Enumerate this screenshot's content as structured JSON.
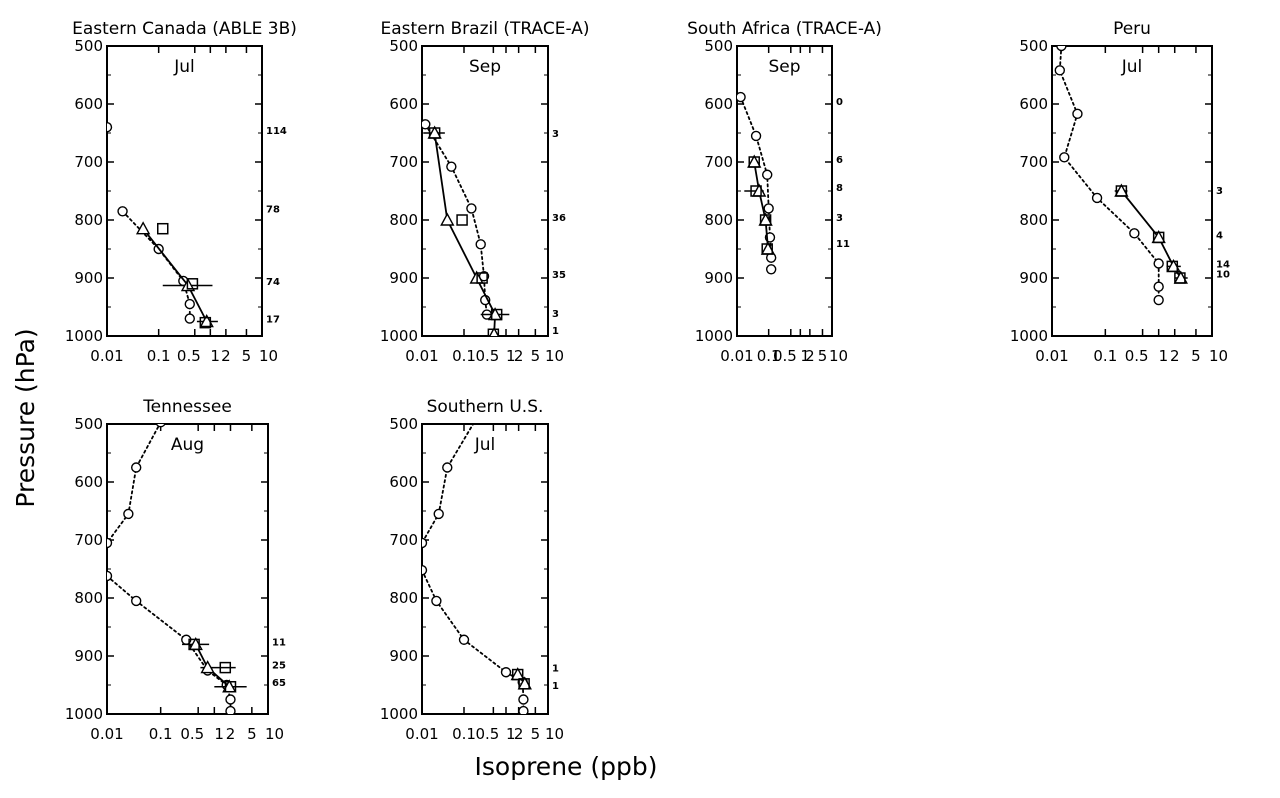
{
  "figure": {
    "ylabel": "Pressure (hPa)",
    "xlabel": "Isoprene (ppb)"
  },
  "chart_data": [
    {
      "type": "line",
      "title": "Eastern Canada (ABLE 3B)",
      "month": "Jul",
      "xscale": "log",
      "xlim": [
        0.01,
        10
      ],
      "ylim": [
        1000,
        500
      ],
      "xticks": [
        "0.01",
        "0.1",
        "0.5",
        "1",
        "2",
        "5",
        "10"
      ],
      "yticks": [
        "500",
        "600",
        "700",
        "800",
        "900",
        "1000"
      ],
      "model": [
        {
          "x": 0.01,
          "y": 640
        },
        {
          "x": 0.02,
          "y": 785
        },
        {
          "x": 0.1,
          "y": 850
        },
        {
          "x": 0.3,
          "y": 905
        },
        {
          "x": 0.4,
          "y": 945
        },
        {
          "x": 0.4,
          "y": 970
        }
      ],
      "model_linebreaks_after": [
        0
      ],
      "observed": [
        {
          "x": 0.05,
          "y": 815,
          "err": null
        },
        {
          "x": 0.37,
          "y": 913,
          "err": [
            0.12,
            1.1
          ]
        },
        {
          "x": 0.85,
          "y": 975,
          "err": [
            0.55,
            1.4
          ]
        }
      ],
      "squares": [
        {
          "x": 0.12,
          "y": 815
        },
        {
          "x": 0.45,
          "y": 910
        },
        {
          "x": 0.8,
          "y": 977
        }
      ],
      "counts": [
        {
          "y": 645,
          "n": "114"
        },
        {
          "y": 780,
          "n": "78"
        },
        {
          "y": 905,
          "n": "74"
        },
        {
          "y": 970,
          "n": "17"
        }
      ]
    },
    {
      "type": "line",
      "title": "Eastern Brazil (TRACE-A)",
      "month": "Sep",
      "xscale": "log",
      "xlim": [
        0.01,
        10
      ],
      "ylim": [
        1000,
        500
      ],
      "xticks": [
        "0.01",
        "0.1",
        "0.5",
        "1",
        "2",
        "5",
        "10"
      ],
      "yticks": [
        "500",
        "600",
        "700",
        "800",
        "900",
        "1000"
      ],
      "model": [
        {
          "x": 0.012,
          "y": 635
        },
        {
          "x": 0.05,
          "y": 708
        },
        {
          "x": 0.15,
          "y": 780
        },
        {
          "x": 0.25,
          "y": 842
        },
        {
          "x": 0.3,
          "y": 897
        },
        {
          "x": 0.32,
          "y": 938
        },
        {
          "x": 0.35,
          "y": 963
        }
      ],
      "model_linebreaks_after": [],
      "observed": [
        {
          "x": 0.02,
          "y": 650,
          "err": [
            0.011,
            0.035
          ]
        },
        {
          "x": 0.04,
          "y": 800,
          "err": null
        },
        {
          "x": 0.2,
          "y": 900,
          "err": null
        },
        {
          "x": 0.55,
          "y": 963,
          "err": [
            0.25,
            1.2
          ]
        },
        {
          "x": 0.52,
          "y": 997,
          "err": null
        }
      ],
      "squares": [
        {
          "x": 0.02,
          "y": 650
        },
        {
          "x": 0.09,
          "y": 800
        },
        {
          "x": 0.27,
          "y": 900
        },
        {
          "x": 0.6,
          "y": 963
        },
        {
          "x": 0.5,
          "y": 997
        }
      ],
      "counts": [
        {
          "y": 650,
          "n": "3"
        },
        {
          "y": 795,
          "n": "36"
        },
        {
          "y": 893,
          "n": "35"
        },
        {
          "y": 960,
          "n": "3"
        },
        {
          "y": 990,
          "n": "1"
        }
      ]
    },
    {
      "type": "line",
      "title": "South Africa (TRACE-A)",
      "month": "Sep",
      "xscale": "log",
      "xlim": [
        0.01,
        10
      ],
      "ylim": [
        1000,
        500
      ],
      "xticks": [
        "0.01",
        "0.1",
        "0.5",
        "1",
        "2",
        "5",
        "10"
      ],
      "yticks": [
        "500",
        "600",
        "700",
        "800",
        "900",
        "1000"
      ],
      "model": [
        {
          "x": 0.013,
          "y": 588
        },
        {
          "x": 0.04,
          "y": 655
        },
        {
          "x": 0.09,
          "y": 722
        },
        {
          "x": 0.1,
          "y": 780
        },
        {
          "x": 0.11,
          "y": 830
        },
        {
          "x": 0.12,
          "y": 865
        },
        {
          "x": 0.12,
          "y": 885
        }
      ],
      "model_linebreaks_after": [],
      "observed": [
        {
          "x": 0.035,
          "y": 700,
          "err": [
            0.028,
            0.045
          ]
        },
        {
          "x": 0.05,
          "y": 750,
          "err": [
            0.017,
            0.07
          ]
        },
        {
          "x": 0.08,
          "y": 800,
          "err": [
            0.065,
            0.11
          ]
        },
        {
          "x": 0.095,
          "y": 850,
          "err": [
            0.08,
            0.12
          ]
        }
      ],
      "squares": [
        {
          "x": 0.035,
          "y": 700
        },
        {
          "x": 0.04,
          "y": 750
        },
        {
          "x": 0.08,
          "y": 800
        },
        {
          "x": 0.09,
          "y": 850
        }
      ],
      "counts": [
        {
          "y": 595,
          "n": "0"
        },
        {
          "y": 695,
          "n": "6"
        },
        {
          "y": 743,
          "n": "8"
        },
        {
          "y": 795,
          "n": "3"
        },
        {
          "y": 840,
          "n": "11"
        }
      ]
    },
    {
      "type": "line",
      "title": "Peru",
      "month": "Jul",
      "xscale": "log",
      "xlim": [
        0.01,
        10
      ],
      "ylim": [
        1000,
        500
      ],
      "xticks": [
        "0.01",
        "0.1",
        "0.5",
        "1",
        "2",
        "5",
        "10"
      ],
      "yticks": [
        "500",
        "600",
        "700",
        "800",
        "900",
        "1000"
      ],
      "model": [
        {
          "x": 0.015,
          "y": 500
        },
        {
          "x": 0.014,
          "y": 542
        },
        {
          "x": 0.03,
          "y": 617
        },
        {
          "x": 0.017,
          "y": 692
        },
        {
          "x": 0.07,
          "y": 762
        },
        {
          "x": 0.35,
          "y": 823
        },
        {
          "x": 1.0,
          "y": 875
        },
        {
          "x": 1.0,
          "y": 915
        },
        {
          "x": 1.0,
          "y": 938
        }
      ],
      "model_linebreaks_after": [],
      "observed": [
        {
          "x": 0.2,
          "y": 750,
          "err": [
            0.15,
            0.26
          ]
        },
        {
          "x": 1.0,
          "y": 830,
          "err": [
            0.85,
            1.15
          ]
        },
        {
          "x": 1.9,
          "y": 880,
          "err": [
            1.4,
            2.6
          ]
        },
        {
          "x": 2.6,
          "y": 900,
          "err": [
            2.0,
            3.5
          ]
        }
      ],
      "squares": [
        {
          "x": 0.2,
          "y": 750
        },
        {
          "x": 1.0,
          "y": 830
        },
        {
          "x": 1.8,
          "y": 880
        },
        {
          "x": 2.5,
          "y": 900
        }
      ],
      "counts": [
        {
          "y": 748,
          "n": "3"
        },
        {
          "y": 825,
          "n": "4"
        },
        {
          "y": 875,
          "n": "14"
        },
        {
          "y": 892,
          "n": "10"
        }
      ]
    },
    {
      "type": "line",
      "title": "Tennessee",
      "month": "Aug",
      "xscale": "log",
      "xlim": [
        0.01,
        10
      ],
      "ylim": [
        1000,
        500
      ],
      "xticks": [
        "0.01",
        "0.1",
        "0.5",
        "1",
        "2",
        "5",
        "10"
      ],
      "yticks": [
        "500",
        "600",
        "700",
        "800",
        "900",
        "1000"
      ],
      "model": [
        {
          "x": 0.2,
          "y": 472
        },
        {
          "x": 0.1,
          "y": 497
        },
        {
          "x": 0.035,
          "y": 575
        },
        {
          "x": 0.025,
          "y": 655
        },
        {
          "x": 0.01,
          "y": 705
        },
        {
          "x": 0.01,
          "y": 762
        },
        {
          "x": 0.035,
          "y": 805
        },
        {
          "x": 0.3,
          "y": 872
        },
        {
          "x": 0.75,
          "y": 925
        },
        {
          "x": 1.7,
          "y": 950
        },
        {
          "x": 2.0,
          "y": 975
        },
        {
          "x": 2.0,
          "y": 995
        }
      ],
      "model_linebreaks_after": [
        4
      ],
      "observed": [
        {
          "x": 0.45,
          "y": 880,
          "err": [
            0.25,
            0.8
          ]
        },
        {
          "x": 0.75,
          "y": 920,
          "err": [
            0.55,
            2.5
          ]
        },
        {
          "x": 1.9,
          "y": 953,
          "err": [
            1.0,
            4.0
          ]
        }
      ],
      "squares": [
        {
          "x": 0.42,
          "y": 880
        },
        {
          "x": 1.6,
          "y": 920
        },
        {
          "x": 2.0,
          "y": 953
        }
      ],
      "counts": [
        {
          "y": 875,
          "n": "11"
        },
        {
          "y": 915,
          "n": "25"
        },
        {
          "y": 945,
          "n": "65"
        }
      ]
    },
    {
      "type": "line",
      "title": "Southern U.S.",
      "month": "Jul",
      "xscale": "log",
      "xlim": [
        0.01,
        10
      ],
      "ylim": [
        1000,
        500
      ],
      "xticks": [
        "0.01",
        "0.1",
        "0.5",
        "1",
        "2",
        "5",
        "10"
      ],
      "yticks": [
        "500",
        "600",
        "700",
        "800",
        "900",
        "1000"
      ],
      "model": [
        {
          "x": 0.2,
          "y": 490
        },
        {
          "x": 0.04,
          "y": 575
        },
        {
          "x": 0.025,
          "y": 655
        },
        {
          "x": 0.01,
          "y": 705
        },
        {
          "x": 0.01,
          "y": 752
        },
        {
          "x": 0.022,
          "y": 805
        },
        {
          "x": 0.1,
          "y": 872
        },
        {
          "x": 1.0,
          "y": 928
        },
        {
          "x": 2.5,
          "y": 945
        },
        {
          "x": 2.6,
          "y": 975
        },
        {
          "x": 2.6,
          "y": 995
        }
      ],
      "model_linebreaks_after": [
        3
      ],
      "observed": [
        {
          "x": 1.9,
          "y": 932,
          "err": [
            1.6,
            2.3
          ]
        },
        {
          "x": 2.8,
          "y": 948,
          "err": [
            2.2,
            3.4
          ]
        },
        {
          "x": 0.2,
          "y": 490,
          "err": null
        }
      ],
      "observed_markers": [
        "triangle",
        "triangle",
        "diamond"
      ],
      "squares": [
        {
          "x": 1.9,
          "y": 932
        },
        {
          "x": 2.7,
          "y": 948
        }
      ],
      "counts": [
        {
          "y": 920,
          "n": "1"
        },
        {
          "y": 950,
          "n": "1"
        }
      ]
    }
  ]
}
